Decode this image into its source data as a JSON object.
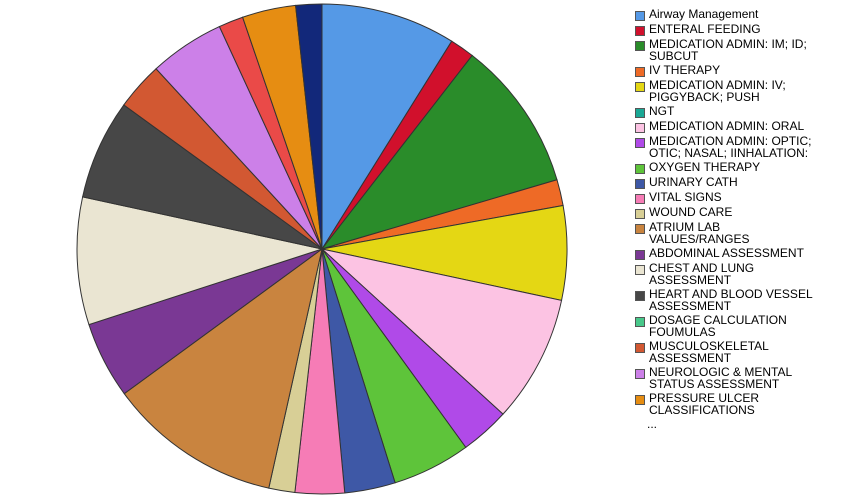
{
  "chart_data": {
    "type": "pie",
    "title": "",
    "slices": [
      {
        "label": "Airway Management",
        "value": 9.3,
        "color": "#5599e6"
      },
      {
        "label": "ENTERAL FEEDING",
        "value": 1.7,
        "color": "#d1102c"
      },
      {
        "label": "MEDICATION ADMIN: IM; ID;\nSUBCUT",
        "value": 10.4,
        "color": "#2a8c2a"
      },
      {
        "label": "IV THERAPY",
        "value": 1.8,
        "color": "#ee6a26"
      },
      {
        "label": "MEDICATION ADMIN: IV;\nPIGGYBACK; PUSH",
        "value": 6.5,
        "color": "#e4d714"
      },
      {
        "label": "MEDICATION ADMIN: ORAL",
        "value": 8.8,
        "color": "#fcc3e3"
      },
      {
        "label": "MEDICATION ADMIN: OPTIC;\nOTIC; NASAL; IINHALATION:",
        "value": 3.4,
        "color": "#b04ae8"
      },
      {
        "label": "OXYGEN THERAPY",
        "value": 5.4,
        "color": "#5ec43a"
      },
      {
        "label": "URINARY CATH",
        "value": 3.5,
        "color": "#3e58a6"
      },
      {
        "label": "VITAL SIGNS",
        "value": 3.4,
        "color": "#f67cb6"
      },
      {
        "label": "WOUND CARE",
        "value": 1.8,
        "color": "#d8cf96"
      },
      {
        "label": "ATRIUM LAB\nVALUES/RANGES",
        "value": 12.0,
        "color": "#c9843f"
      },
      {
        "label": "ABDOMINAL ASSESSMENT",
        "value": 5.3,
        "color": "#7a3894"
      },
      {
        "label": "CHEST AND LUNG\nASSESSMENT",
        "value": 8.8,
        "color": "#eae5d2"
      },
      {
        "label": "HEART AND BLOOD VESSEL\nASSESSMENT",
        "value": 6.9,
        "color": "#474747"
      },
      {
        "label": "MUSCULOSKELETAL\nASSESSMENT",
        "value": 3.3,
        "color": "#d25832"
      },
      {
        "label": "NEUROLOGIC & MENTAL\nSTATUS ASSESSMENT",
        "value": 5.2,
        "color": "#cc80e8"
      },
      {
        "label": "",
        "value": 1.7,
        "color": "#ea4a48"
      },
      {
        "label": "PRESSURE ULCER\nCLASSIFICATIONS",
        "value": 3.7,
        "color": "#e68d12"
      },
      {
        "label": "",
        "value": 1.8,
        "color": "#12287a"
      }
    ],
    "legend": {
      "placement": "right",
      "entries": [
        {
          "label": "Airway Management",
          "color": "#5599e6"
        },
        {
          "label": "ENTERAL FEEDING",
          "color": "#d1102c"
        },
        {
          "label": "MEDICATION ADMIN: IM; ID;\nSUBCUT",
          "color": "#2a8c2a"
        },
        {
          "label": "IV THERAPY",
          "color": "#ee6a26"
        },
        {
          "label": "MEDICATION ADMIN: IV;\nPIGGYBACK; PUSH",
          "color": "#e4d714"
        },
        {
          "label": "NGT",
          "color": "#1aa895"
        },
        {
          "label": "MEDICATION ADMIN: ORAL",
          "color": "#fcc3e3"
        },
        {
          "label": "MEDICATION ADMIN: OPTIC;\nOTIC; NASAL; IINHALATION:",
          "color": "#b04ae8"
        },
        {
          "label": "OXYGEN THERAPY",
          "color": "#5ec43a"
        },
        {
          "label": "URINARY CATH",
          "color": "#3e58a6"
        },
        {
          "label": "VITAL SIGNS",
          "color": "#f67cb6"
        },
        {
          "label": "WOUND CARE",
          "color": "#d8cf96"
        },
        {
          "label": "ATRIUM LAB\nVALUES/RANGES",
          "color": "#c9843f"
        },
        {
          "label": "ABDOMINAL ASSESSMENT",
          "color": "#7a3894"
        },
        {
          "label": "CHEST AND LUNG\nASSESSMENT",
          "color": "#eae5d2"
        },
        {
          "label": "HEART AND BLOOD VESSEL\nASSESSMENT",
          "color": "#474747"
        },
        {
          "label": "DOSAGE CALCULATION\nFOUMULAS",
          "color": "#48c88a"
        },
        {
          "label": "MUSCULOSKELETAL\nASSESSMENT",
          "color": "#d25832"
        },
        {
          "label": "NEUROLOGIC & MENTAL\nSTATUS ASSESSMENT",
          "color": "#cc80e8"
        },
        {
          "label": "PRESSURE ULCER\nCLASSIFICATIONS",
          "color": "#e68d12"
        }
      ],
      "more": "..."
    }
  }
}
